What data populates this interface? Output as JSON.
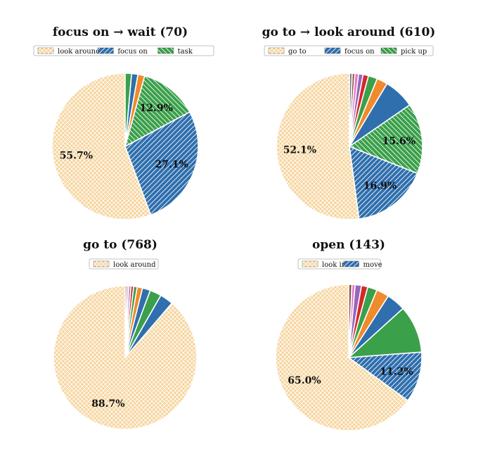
{
  "chart_data": [
    {
      "type": "pie",
      "title": "focus on → wait (70)",
      "legend": [
        "look around",
        "focus on",
        "task"
      ],
      "legend_placement": "top",
      "slices": [
        {
          "category": "look around",
          "value": 55.7,
          "color": "#f6d49c",
          "hatch": "cross",
          "label": "55.7%"
        },
        {
          "category": "focus on",
          "value": 27.1,
          "color": "#2f6fae",
          "hatch": "diag",
          "label": "27.1%"
        },
        {
          "category": "task",
          "value": 12.9,
          "color": "#3aa04a",
          "hatch": "back",
          "label": "12.9%"
        },
        {
          "category": "",
          "value": 1.5,
          "color": "#f08a2c",
          "hatch": "none",
          "label": ""
        },
        {
          "category": "",
          "value": 1.4,
          "color": "#2f6fae",
          "hatch": "none",
          "label": ""
        },
        {
          "category": "",
          "value": 1.4,
          "color": "#3aa04a",
          "hatch": "none",
          "label": ""
        }
      ]
    },
    {
      "type": "pie",
      "title": "go to → look around (610)",
      "legend": [
        "go to",
        "focus on",
        "pick up"
      ],
      "legend_placement": "top",
      "slices": [
        {
          "category": "go to",
          "value": 52.1,
          "color": "#f6d49c",
          "hatch": "cross",
          "label": "52.1%"
        },
        {
          "category": "focus on",
          "value": 16.9,
          "color": "#2f6fae",
          "hatch": "diag",
          "label": "16.9%"
        },
        {
          "category": "pick up",
          "value": 15.6,
          "color": "#3aa04a",
          "hatch": "back",
          "label": "15.6%"
        },
        {
          "category": "",
          "value": 6.8,
          "color": "#2f6fae",
          "hatch": "none",
          "label": ""
        },
        {
          "category": "",
          "value": 2.4,
          "color": "#f08a2c",
          "hatch": "none",
          "label": ""
        },
        {
          "category": "",
          "value": 2.0,
          "color": "#3aa04a",
          "hatch": "none",
          "label": ""
        },
        {
          "category": "",
          "value": 1.2,
          "color": "#d62728",
          "hatch": "none",
          "label": ""
        },
        {
          "category": "",
          "value": 1.0,
          "color": "#9467bd",
          "hatch": "none",
          "label": ""
        },
        {
          "category": "",
          "value": 0.8,
          "color": "#e377c2",
          "hatch": "none",
          "label": ""
        },
        {
          "category": "",
          "value": 0.6,
          "color": "#8c564b",
          "hatch": "none",
          "label": ""
        },
        {
          "category": "",
          "value": 0.6,
          "color": "#7f7f7f",
          "hatch": "none",
          "label": ""
        }
      ]
    },
    {
      "type": "pie",
      "title": "go to (768)",
      "legend": [
        "look around"
      ],
      "legend_placement": "top",
      "slices": [
        {
          "category": "look around",
          "value": 88.7,
          "color": "#f6d49c",
          "hatch": "cross",
          "label": "88.7%"
        },
        {
          "category": "",
          "value": 3.0,
          "color": "#2f6fae",
          "hatch": "none",
          "label": ""
        },
        {
          "category": "",
          "value": 2.6,
          "color": "#3aa04a",
          "hatch": "none",
          "label": ""
        },
        {
          "category": "",
          "value": 1.8,
          "color": "#2f6fae",
          "hatch": "none",
          "label": ""
        },
        {
          "category": "",
          "value": 1.2,
          "color": "#f08a2c",
          "hatch": "none",
          "label": ""
        },
        {
          "category": "",
          "value": 0.8,
          "color": "#3aa04a",
          "hatch": "none",
          "label": ""
        },
        {
          "category": "",
          "value": 0.6,
          "color": "#d62728",
          "hatch": "none",
          "label": ""
        },
        {
          "category": "",
          "value": 0.5,
          "color": "#9467bd",
          "hatch": "none",
          "label": ""
        },
        {
          "category": "",
          "value": 0.4,
          "color": "#e377c2",
          "hatch": "none",
          "label": ""
        },
        {
          "category": "",
          "value": 0.4,
          "color": "#7f7f7f",
          "hatch": "none",
          "label": ""
        }
      ]
    },
    {
      "type": "pie",
      "title": "open (143)",
      "legend": [
        "look in",
        "move"
      ],
      "legend_placement": "top",
      "slices": [
        {
          "category": "look in",
          "value": 65.0,
          "color": "#f6d49c",
          "hatch": "cross",
          "label": "65.0%"
        },
        {
          "category": "move",
          "value": 11.2,
          "color": "#2f6fae",
          "hatch": "diag",
          "label": "11.2%"
        },
        {
          "category": "",
          "value": 10.5,
          "color": "#3aa04a",
          "hatch": "none",
          "label": ""
        },
        {
          "category": "",
          "value": 4.2,
          "color": "#2f6fae",
          "hatch": "none",
          "label": ""
        },
        {
          "category": "",
          "value": 2.8,
          "color": "#f08a2c",
          "hatch": "none",
          "label": ""
        },
        {
          "category": "",
          "value": 2.1,
          "color": "#3aa04a",
          "hatch": "none",
          "label": ""
        },
        {
          "category": "",
          "value": 1.4,
          "color": "#d62728",
          "hatch": "none",
          "label": ""
        },
        {
          "category": "",
          "value": 1.4,
          "color": "#9467bd",
          "hatch": "none",
          "label": ""
        },
        {
          "category": "",
          "value": 0.7,
          "color": "#e377c2",
          "hatch": "none",
          "label": ""
        },
        {
          "category": "",
          "value": 0.7,
          "color": "#8c564b",
          "hatch": "none",
          "label": ""
        }
      ]
    }
  ]
}
